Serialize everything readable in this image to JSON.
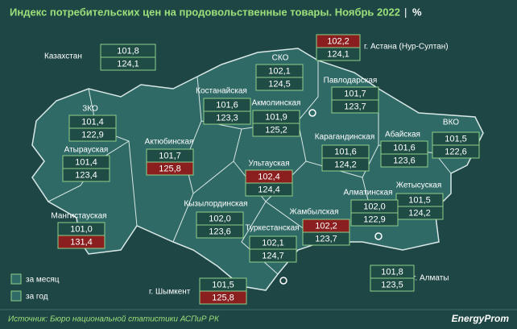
{
  "header": {
    "title": "Индекс потребительских цен на продовольственные товары. Ноябрь 2022",
    "unit": "%"
  },
  "regions": [
    {
      "label": "Казахстан",
      "month": "101,8",
      "year": "124,1"
    },
    {
      "label": "г. Астана (Нур-Султан)",
      "month": "102,2",
      "year": "124,1"
    },
    {
      "label": "СКО",
      "month": "102,1",
      "year": "124,5"
    },
    {
      "label": "Павлодарская",
      "month": "101,7",
      "year": "123,7"
    },
    {
      "label": "Костанайская",
      "month": "101,6",
      "year": "123,3"
    },
    {
      "label": "Акмолинская",
      "month": "101,9",
      "year": "125,2"
    },
    {
      "label": "ЗКО",
      "month": "101,4",
      "year": "122,9"
    },
    {
      "label": "Абайская",
      "month": "101,6",
      "year": "123,6"
    },
    {
      "label": "ВКО",
      "month": "101,5",
      "year": "122,6"
    },
    {
      "label": "Карагандинская",
      "month": "101,6",
      "year": "124,2"
    },
    {
      "label": "Атырауская",
      "month": "101,4",
      "year": "123,4"
    },
    {
      "label": "Актюбинская",
      "month": "101,7",
      "year": "125,8"
    },
    {
      "label": "Ультауская",
      "month": "102,4",
      "year": "124,4"
    },
    {
      "label": "Жетысуская",
      "month": "101,5",
      "year": "124,2"
    },
    {
      "label": "Алматинская",
      "month": "102,0",
      "year": "122,9"
    },
    {
      "label": "Кызылординская",
      "month": "102,0",
      "year": "123,6"
    },
    {
      "label": "Жамбылская",
      "month": "102,2",
      "year": "123,7"
    },
    {
      "label": "Мангистауская",
      "month": "101,0",
      "year": "131,4"
    },
    {
      "label": "Туркестанская",
      "month": "102,1",
      "year": "124,7"
    },
    {
      "label": "г. Алматы",
      "month": "101,8",
      "year": "123,5"
    },
    {
      "label": "г. Шымкент",
      "month": "101,5",
      "year": "125,8"
    }
  ],
  "legend": {
    "month": "за месяц",
    "year": "за год"
  },
  "footer": {
    "source": "Источник: Бюро национальной статистики АСПиР РК",
    "logo": "EnergyProm"
  }
}
